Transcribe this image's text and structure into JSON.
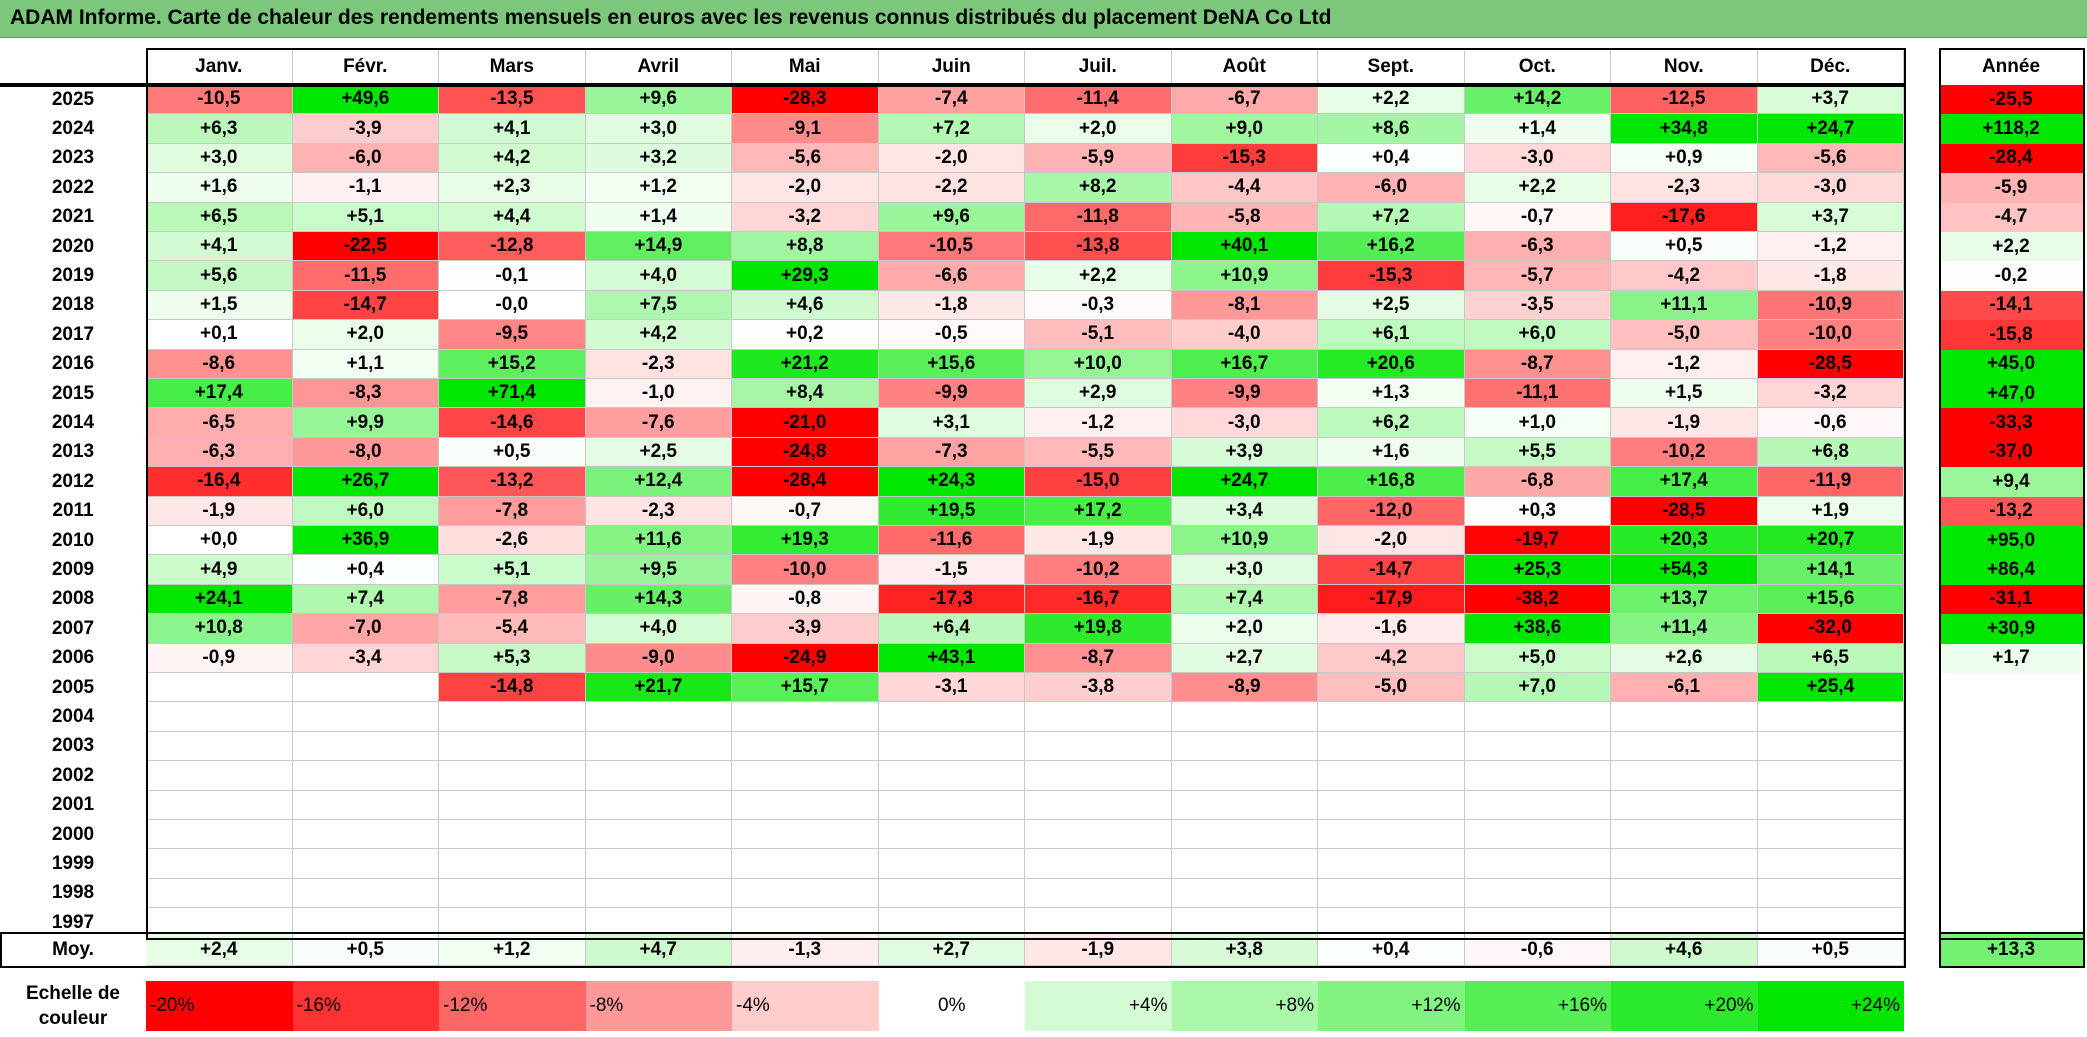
{
  "title": "ADAM Informe. Carte de chaleur des rendements mensuels en euros avec les revenus connus distribués du placement DeNA Co Ltd",
  "chart_data": {
    "type": "heatmap",
    "columns": [
      "Janv.",
      "Févr.",
      "Mars",
      "Avril",
      "Mai",
      "Juin",
      "Juil.",
      "Août",
      "Sept.",
      "Oct.",
      "Nov.",
      "Déc."
    ],
    "year_column": "Année",
    "years": [
      "2025",
      "2024",
      "2023",
      "2022",
      "2021",
      "2020",
      "2019",
      "2018",
      "2017",
      "2016",
      "2015",
      "2014",
      "2013",
      "2012",
      "2011",
      "2010",
      "2009",
      "2008",
      "2007",
      "2006",
      "2005",
      "2004",
      "2003",
      "2002",
      "2001",
      "2000",
      "1999",
      "1998",
      "1997"
    ],
    "values": [
      [
        "-10,5",
        "+49,6",
        "-13,5",
        "+9,6",
        "-28,3",
        "-7,4",
        "-11,4",
        "-6,7",
        "+2,2",
        "+14,2",
        "-12,5",
        "+3,7"
      ],
      [
        "+6,3",
        "-3,9",
        "+4,1",
        "+3,0",
        "-9,1",
        "+7,2",
        "+2,0",
        "+9,0",
        "+8,6",
        "+1,4",
        "+34,8",
        "+24,7"
      ],
      [
        "+3,0",
        "-6,0",
        "+4,2",
        "+3,2",
        "-5,6",
        "-2,0",
        "-5,9",
        "-15,3",
        "+0,4",
        "-3,0",
        "+0,9",
        "-5,6"
      ],
      [
        "+1,6",
        "-1,1",
        "+2,3",
        "+1,2",
        "-2,0",
        "-2,2",
        "+8,2",
        "-4,4",
        "-6,0",
        "+2,2",
        "-2,3",
        "-3,0"
      ],
      [
        "+6,5",
        "+5,1",
        "+4,4",
        "+1,4",
        "-3,2",
        "+9,6",
        "-11,8",
        "-5,8",
        "+7,2",
        "-0,7",
        "-17,6",
        "+3,7"
      ],
      [
        "+4,1",
        "-22,5",
        "-12,8",
        "+14,9",
        "+8,8",
        "-10,5",
        "-13,8",
        "+40,1",
        "+16,2",
        "-6,3",
        "+0,5",
        "-1,2"
      ],
      [
        "+5,6",
        "-11,5",
        "-0,1",
        "+4,0",
        "+29,3",
        "-6,6",
        "+2,2",
        "+10,9",
        "-15,3",
        "-5,7",
        "-4,2",
        "-1,8"
      ],
      [
        "+1,5",
        "-14,7",
        "-0,0",
        "+7,5",
        "+4,6",
        "-1,8",
        "-0,3",
        "-8,1",
        "+2,5",
        "-3,5",
        "+11,1",
        "-10,9"
      ],
      [
        "+0,1",
        "+2,0",
        "-9,5",
        "+4,2",
        "+0,2",
        "-0,5",
        "-5,1",
        "-4,0",
        "+6,1",
        "+6,0",
        "-5,0",
        "-10,0"
      ],
      [
        "-8,6",
        "+1,1",
        "+15,2",
        "-2,3",
        "+21,2",
        "+15,6",
        "+10,0",
        "+16,7",
        "+20,6",
        "-8,7",
        "-1,2",
        "-28,5"
      ],
      [
        "+17,4",
        "-8,3",
        "+71,4",
        "-1,0",
        "+8,4",
        "-9,9",
        "+2,9",
        "-9,9",
        "+1,3",
        "-11,1",
        "+1,5",
        "-3,2"
      ],
      [
        "-6,5",
        "+9,9",
        "-14,6",
        "-7,6",
        "-21,0",
        "+3,1",
        "-1,2",
        "-3,0",
        "+6,2",
        "+1,0",
        "-1,9",
        "-0,6"
      ],
      [
        "-6,3",
        "-8,0",
        "+0,5",
        "+2,5",
        "-24,8",
        "-7,3",
        "-5,5",
        "+3,9",
        "+1,6",
        "+5,5",
        "-10,2",
        "+6,8"
      ],
      [
        "-16,4",
        "+26,7",
        "-13,2",
        "+12,4",
        "-28,4",
        "+24,3",
        "-15,0",
        "+24,7",
        "+16,8",
        "-6,8",
        "+17,4",
        "-11,9"
      ],
      [
        "-1,9",
        "+6,0",
        "-7,8",
        "-2,3",
        "-0,7",
        "+19,5",
        "+17,2",
        "+3,4",
        "-12,0",
        "+0,3",
        "-28,5",
        "+1,9"
      ],
      [
        "+0,0",
        "+36,9",
        "-2,6",
        "+11,6",
        "+19,3",
        "-11,6",
        "-1,9",
        "+10,9",
        "-2,0",
        "-19,7",
        "+20,3",
        "+20,7"
      ],
      [
        "+4,9",
        "+0,4",
        "+5,1",
        "+9,5",
        "-10,0",
        "-1,5",
        "-10,2",
        "+3,0",
        "-14,7",
        "+25,3",
        "+54,3",
        "+14,1"
      ],
      [
        "+24,1",
        "+7,4",
        "-7,8",
        "+14,3",
        "-0,8",
        "-17,3",
        "-16,7",
        "+7,4",
        "-17,9",
        "-38,2",
        "+13,7",
        "+15,6"
      ],
      [
        "+10,8",
        "-7,0",
        "-5,4",
        "+4,0",
        "-3,9",
        "+6,4",
        "+19,8",
        "+2,0",
        "-1,6",
        "+38,6",
        "+11,4",
        "-32,0"
      ],
      [
        "-0,9",
        "-3,4",
        "+5,3",
        "-9,0",
        "-24,9",
        "+43,1",
        "-8,7",
        "+2,7",
        "-4,2",
        "+5,0",
        "+2,6",
        "+6,5"
      ],
      [
        "",
        "",
        "-14,8",
        "+21,7",
        "+15,7",
        "-3,1",
        "-3,8",
        "-8,9",
        "-5,0",
        "+7,0",
        "-6,1",
        "+25,4"
      ],
      [
        "",
        "",
        "",
        "",
        "",
        "",
        "",
        "",
        "",
        "",
        "",
        ""
      ],
      [
        "",
        "",
        "",
        "",
        "",
        "",
        "",
        "",
        "",
        "",
        "",
        ""
      ],
      [
        "",
        "",
        "",
        "",
        "",
        "",
        "",
        "",
        "",
        "",
        "",
        ""
      ],
      [
        "",
        "",
        "",
        "",
        "",
        "",
        "",
        "",
        "",
        "",
        "",
        ""
      ],
      [
        "",
        "",
        "",
        "",
        "",
        "",
        "",
        "",
        "",
        "",
        "",
        ""
      ],
      [
        "",
        "",
        "",
        "",
        "",
        "",
        "",
        "",
        "",
        "",
        "",
        ""
      ],
      [
        "",
        "",
        "",
        "",
        "",
        "",
        "",
        "",
        "",
        "",
        "",
        ""
      ],
      [
        "",
        "",
        "",
        "",
        "",
        "",
        "",
        "",
        "",
        "",
        "",
        ""
      ]
    ],
    "annual": [
      "-25,5",
      "+118,2",
      "-28,4",
      "-5,9",
      "-4,7",
      "+2,2",
      "-0,2",
      "-14,1",
      "-15,8",
      "+45,0",
      "+47,0",
      "-33,3",
      "-37,0",
      "+9,4",
      "-13,2",
      "+95,0",
      "+86,4",
      "-31,1",
      "+30,9",
      "+1,7",
      "",
      "",
      "",
      "",
      "",
      "",
      "",
      "",
      ""
    ],
    "average_label": "Moy.",
    "averages": [
      "+2,4",
      "+0,5",
      "+1,2",
      "+4,7",
      "-1,3",
      "+2,7",
      "-1,9",
      "+3,8",
      "+0,4",
      "-0,6",
      "+4,6",
      "+0,5"
    ],
    "average_annual": "+13,3",
    "scale_label": "Echelle de couleur",
    "scale": [
      {
        "label": "-20%",
        "value": -20
      },
      {
        "label": "-16%",
        "value": -16
      },
      {
        "label": "-12%",
        "value": -12
      },
      {
        "label": "-8%",
        "value": -8
      },
      {
        "label": "-4%",
        "value": -4
      },
      {
        "label": "0%",
        "value": 0
      },
      {
        "label": "+4%",
        "value": 4
      },
      {
        "label": "+8%",
        "value": 8
      },
      {
        "label": "+12%",
        "value": 12
      },
      {
        "label": "+16%",
        "value": 16
      },
      {
        "label": "+20%",
        "value": 20
      },
      {
        "label": "+24%",
        "value": 24
      }
    ],
    "colors": {
      "negative_max": "#ff0000",
      "positive_max": "#00e600",
      "neutral": "#ffffff",
      "title_bar": "#7dc77d"
    }
  }
}
